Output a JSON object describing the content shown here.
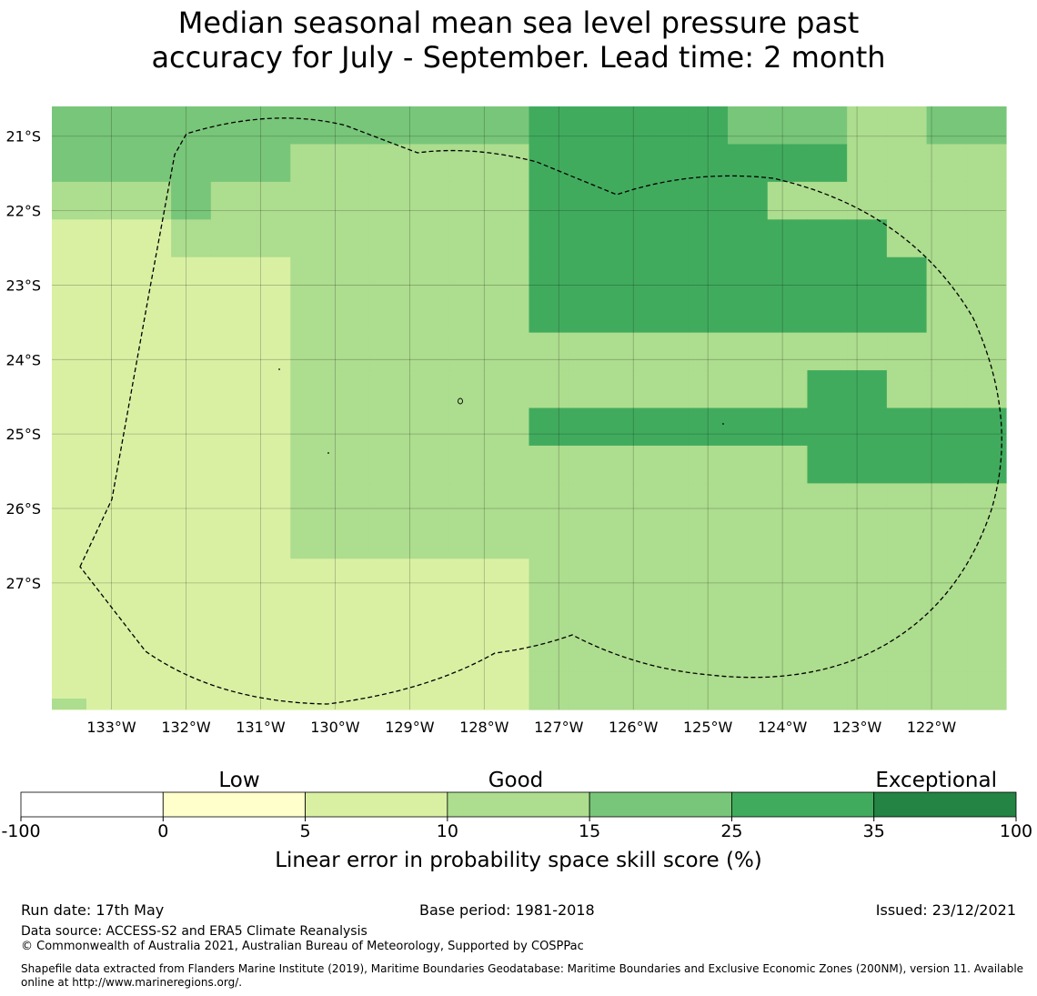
{
  "title": {
    "line1": "Median seasonal mean sea level pressure past",
    "line2": "accuracy for July - September. Lead time: 2 month"
  },
  "map": {
    "lat_labels": [
      "21°S",
      "22°S",
      "23°S",
      "24°S",
      "25°S",
      "26°S",
      "27°S"
    ],
    "lon_labels": [
      "133°W",
      "132°W",
      "131°W",
      "130°W",
      "129°W",
      "128°W",
      "127°W",
      "126°W",
      "125°W",
      "124°W",
      "123°W",
      "122°W"
    ],
    "lon_range": [
      -133.8,
      -121.0
    ],
    "lat_range": [
      -20.6,
      -28.7
    ],
    "grid_cell_classes": [
      "444444444444555554443344",
      "444444333333555555553333",
      "333433333333555555333333",
      "222333333333555555555333",
      "222222333333555555555533",
      "222222333333555555555533",
      "222222333333333333333333",
      "222222333333333333355333",
      "222222333333555555555555",
      "222222333333333333355555",
      "222222333333333333333333",
      "222222333333333333333333",
      "222222222222333333333333",
      "222222222222333333333333",
      "222222222222333333333333",
      "222222222222333333333333"
    ],
    "note": ""
  },
  "colorbar": {
    "classes": [
      {
        "min": -100,
        "max": 0,
        "color": "#ffffff"
      },
      {
        "min": 0,
        "max": 5,
        "color": "#ffffcc"
      },
      {
        "min": 5,
        "max": 10,
        "color": "#d9f0a3"
      },
      {
        "min": 10,
        "max": 15,
        "color": "#addd8e"
      },
      {
        "min": 15,
        "max": 25,
        "color": "#78c679"
      },
      {
        "min": 25,
        "max": 35,
        "color": "#41ab5d"
      },
      {
        "min": 35,
        "max": 100,
        "color": "#238443"
      }
    ],
    "ticks": [
      "-100",
      "0",
      "5",
      "10",
      "15",
      "25",
      "35",
      "100"
    ],
    "categories": [
      "Low",
      "Good",
      "Exceptional"
    ],
    "label": "Linear error in probability space skill score (%)"
  },
  "footer": {
    "run_date": "Run date: 17th May",
    "base_period": "Base period: 1981-2018",
    "issued": "Issued: 23/12/2021",
    "data_source": "Data source: ACCESS-S2 and ERA5 Climate Reanalysis",
    "copyright": "© Commonwealth of Australia 2021, Australian Bureau of Meteorology, Supported by COSPPac",
    "shapefile": "Shapefile data extracted from Flanders Marine Institute (2019), Maritime Boundaries Geodatabase: Maritime Boundaries and Exclusive Economic Zones (200NM), version 11. Available online at http://www.marineregions.org/."
  }
}
